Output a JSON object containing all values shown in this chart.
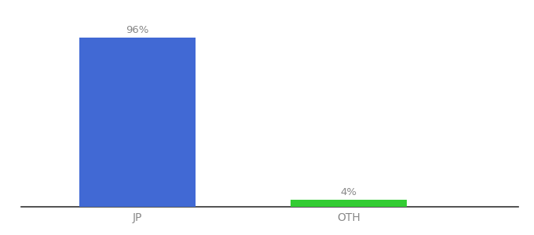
{
  "categories": [
    "JP",
    "OTH"
  ],
  "values": [
    96,
    4
  ],
  "bar_colors": [
    "#4169d4",
    "#33cc33"
  ],
  "bar_labels": [
    "96%",
    "4%"
  ],
  "ylim": [
    0,
    108
  ],
  "background_color": "#ffffff",
  "label_fontsize": 9.5,
  "tick_fontsize": 10,
  "label_color": "#888888",
  "tick_color": "#888888",
  "spine_color": "#333333"
}
